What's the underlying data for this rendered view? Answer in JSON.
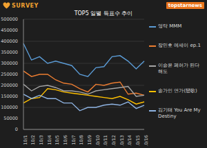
{
  "chart_data": {
    "type": "line",
    "title": "TOP5 일별 득표수 추이",
    "annotations": [
      "SURVEY",
      "topstarnews"
    ],
    "x": [
      "10/1",
      "10/2",
      "10/3",
      "10/4",
      "10/5",
      "10/6",
      "10/7",
      "10/8",
      "10/9",
      "10/10",
      "10/11",
      "10/12",
      "10/13",
      "10/14",
      "10/15",
      "10/16"
    ],
    "series": [
      {
        "name": "영탁 MMM",
        "color": "#5b9bd5",
        "values": [
          390000,
          315000,
          330000,
          300000,
          310000,
          300000,
          290000,
          250000,
          240000,
          280000,
          285000,
          330000,
          335000,
          310000,
          275000,
          310000
        ]
      },
      {
        "name": "장민호 에세이 ep.1",
        "color": "#ed7d31",
        "values": [
          265000,
          240000,
          250000,
          250000,
          225000,
          210000,
          205000,
          185000,
          170000,
          205000,
          200000,
          210000,
          215000,
          160000,
          165000,
          155000
        ]
      },
      {
        "name": "이승윤 페허가 된다 해도",
        "color": "#a5a5a5",
        "values": [
          205000,
          175000,
          195000,
          200000,
          190000,
          175000,
          175000,
          170000,
          160000,
          175000,
          180000,
          185000,
          190000,
          195000,
          150000,
          155000
        ]
      },
      {
        "name": "송가인 연가(戀歌)",
        "color": "#ffc000",
        "values": [
          120000,
          140000,
          145000,
          185000,
          180000,
          170000,
          165000,
          160000,
          155000,
          150000,
          145000,
          140000,
          150000,
          135000,
          115000,
          125000
        ]
      },
      {
        "name": "김기태 You Are My Destiny",
        "color": "#8fb4e3",
        "values": [
          160000,
          140000,
          155000,
          140000,
          140000,
          120000,
          120000,
          85000,
          100000,
          100000,
          110000,
          115000,
          110000,
          125000,
          95000,
          110000
        ]
      }
    ],
    "ylim": [
      0,
      500000
    ],
    "yticks": [
      0,
      50000,
      100000,
      150000,
      200000,
      250000,
      300000,
      350000,
      400000,
      450000,
      500000
    ],
    "grid": true,
    "legend": "right"
  }
}
